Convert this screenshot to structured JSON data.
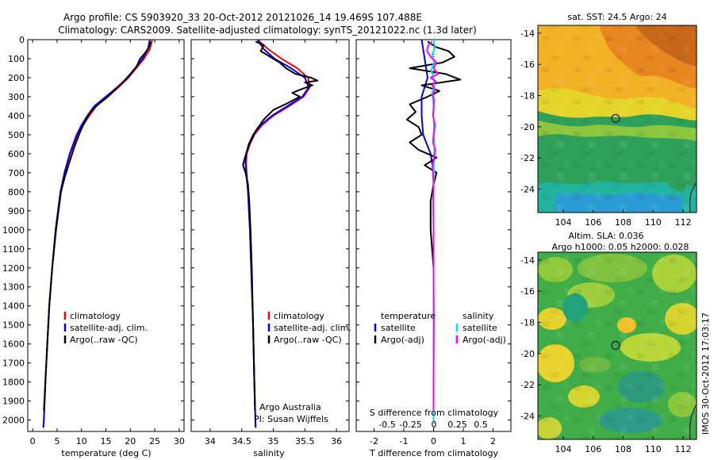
{
  "header": {
    "line1": "Argo profile: CS 5903920_33 20-Oct-2012 20121026_14 19.469S 107.488E",
    "line2": "Climatology: CARS2009. Satellite-adjusted climatology: synTS_20121022.nc (1.3d later)"
  },
  "colors": {
    "climatology": "#ff0000",
    "satellite": "#0000ff",
    "argo": "#000000",
    "sal_satellite": "#00e5e5",
    "sal_argo": "#ff00ff"
  },
  "chart_data": [
    {
      "type": "line",
      "id": "temperature",
      "xlabel": "temperature (deg C)",
      "xlim": [
        -1,
        31
      ],
      "ylim": [
        0,
        2060
      ],
      "x_ticks": [
        0,
        5,
        10,
        15,
        20,
        25,
        30
      ],
      "y_ticks": [
        0,
        100,
        200,
        300,
        400,
        500,
        600,
        700,
        800,
        900,
        1000,
        1100,
        1200,
        1300,
        1400,
        1500,
        1600,
        1700,
        1800,
        1900,
        2000
      ],
      "legend": [
        "climatology",
        "satellite-adj. clim.",
        "Argo(..raw -QC)"
      ],
      "series": [
        {
          "name": "climatology",
          "color": "#ff0000",
          "depth": [
            0,
            50,
            100,
            150,
            200,
            250,
            300,
            350,
            400,
            450,
            500,
            600,
            700,
            800,
            1000,
            1200,
            1400,
            1600,
            1800,
            2000,
            2040
          ],
          "values": [
            24.5,
            24.0,
            22.8,
            21.2,
            19.6,
            17.6,
            15.4,
            13.0,
            11.6,
            10.3,
            9.2,
            7.7,
            6.6,
            5.7,
            4.7,
            4.0,
            3.4,
            3.0,
            2.6,
            2.3,
            2.2
          ]
        },
        {
          "name": "satellite-adj. clim.",
          "color": "#0000ff",
          "depth": [
            0,
            50,
            100,
            150,
            200,
            250,
            300,
            350,
            400,
            450,
            500,
            600,
            700,
            800,
            1000,
            1200,
            1400,
            1600,
            1800,
            2000,
            2040
          ],
          "values": [
            24.0,
            23.6,
            22.5,
            21.0,
            19.5,
            17.3,
            15.0,
            12.6,
            11.2,
            10.0,
            9.0,
            7.6,
            6.5,
            5.7,
            4.7,
            4.0,
            3.4,
            3.0,
            2.6,
            2.3,
            2.2
          ]
        },
        {
          "name": "Argo(..raw -QC)",
          "color": "#000000",
          "depth": [
            10,
            40,
            70,
            100,
            140,
            180,
            220,
            260,
            300,
            340,
            380,
            420,
            480,
            560,
            640,
            720,
            800,
            1000,
            1200,
            1400,
            1600,
            1800,
            1950
          ],
          "values": [
            24.2,
            23.8,
            23.0,
            22.0,
            21.3,
            20.0,
            18.6,
            17.0,
            15.4,
            13.4,
            11.9,
            10.9,
            9.8,
            8.6,
            7.6,
            6.6,
            5.8,
            4.8,
            4.0,
            3.4,
            3.0,
            2.6,
            2.3
          ]
        }
      ]
    },
    {
      "type": "line",
      "id": "salinity",
      "xlabel": "salinity",
      "xlim": [
        33.7,
        36.2
      ],
      "ylim": [
        0,
        2060
      ],
      "x_ticks": [
        34,
        34.5,
        35,
        35.5,
        36
      ],
      "legend": [
        "climatology",
        "satellite-adj. clim.",
        "Argo(..raw -QC)"
      ],
      "annotation": [
        "Argo Australia",
        "PI: Susan Wijffels"
      ],
      "series": [
        {
          "name": "climatology",
          "color": "#ff0000",
          "depth": [
            0,
            50,
            100,
            150,
            200,
            250,
            300,
            350,
            400,
            450,
            500,
            550,
            600,
            650,
            700,
            800,
            1000,
            1200,
            1500,
            1800,
            2040
          ],
          "values": [
            34.75,
            34.92,
            35.13,
            35.38,
            35.55,
            35.58,
            35.48,
            35.25,
            35.0,
            34.82,
            34.7,
            34.63,
            34.58,
            34.57,
            34.58,
            34.6,
            34.63,
            34.65,
            34.68,
            34.7,
            34.72
          ]
        },
        {
          "name": "satellite-adj. clim.",
          "color": "#0000ff",
          "depth": [
            0,
            50,
            100,
            150,
            200,
            250,
            300,
            350,
            400,
            450,
            500,
            550,
            600,
            650,
            700,
            800,
            1000,
            1200,
            1500,
            1800,
            2040
          ],
          "values": [
            34.75,
            34.85,
            35.02,
            35.28,
            35.5,
            35.56,
            35.46,
            35.22,
            34.98,
            34.8,
            34.68,
            34.61,
            34.57,
            34.56,
            34.57,
            34.6,
            34.63,
            34.65,
            34.68,
            34.7,
            34.72
          ]
        },
        {
          "name": "Argo(..raw -QC)",
          "color": "#000000",
          "depth": [
            10,
            30,
            60,
            90,
            120,
            150,
            180,
            200,
            215,
            225,
            240,
            260,
            280,
            300,
            330,
            370,
            420,
            480,
            550,
            620,
            660,
            700,
            760,
            850,
            1000,
            1200,
            1500,
            1800,
            1950
          ],
          "values": [
            34.72,
            34.85,
            34.8,
            34.95,
            35.1,
            35.2,
            35.35,
            35.6,
            35.7,
            35.5,
            35.62,
            35.45,
            35.3,
            35.42,
            35.25,
            35.0,
            34.85,
            34.72,
            34.62,
            34.55,
            34.52,
            34.56,
            34.6,
            34.62,
            34.64,
            34.66,
            34.68,
            34.7,
            34.71
          ]
        }
      ]
    },
    {
      "type": "line",
      "id": "difference",
      "xlabel": "T difference from climatology",
      "x2label": "S difference from climatology",
      "xlim": [
        -2.6,
        2.6
      ],
      "x_ticks": [
        -2,
        -1,
        0,
        1,
        2
      ],
      "x2_ticks": [
        -0.5,
        -0.25,
        0,
        0.25,
        0.5
      ],
      "x2_tick_labels": [
        "-0.5",
        "-0.25",
        "0",
        "0.25",
        "0.5"
      ],
      "legend_temperature": {
        "title": "temperature",
        "entries": [
          "satellite",
          "Argo(-adj)"
        ]
      },
      "legend_salinity": {
        "title": "salinity",
        "entries": [
          "satellite",
          "Argo(-adj)"
        ]
      },
      "series": [
        {
          "name": "temperature satellite",
          "color": "#0000ff",
          "depth": [
            0,
            100,
            200,
            300,
            400,
            500,
            600,
            700,
            800,
            1000,
            1500,
            2000
          ],
          "values": [
            -0.4,
            -0.3,
            -0.2,
            -0.4,
            -0.4,
            -0.35,
            -0.1,
            0.0,
            0.0,
            0.0,
            0.0,
            0.0
          ]
        },
        {
          "name": "temperature Argo(-adj)",
          "color": "#000000",
          "depth": [
            10,
            40,
            60,
            90,
            120,
            150,
            180,
            210,
            240,
            270,
            300,
            340,
            380,
            420,
            460,
            500,
            540,
            580,
            620,
            660,
            700,
            760,
            850,
            1000,
            1200,
            1500,
            1800,
            1950
          ],
          "values": [
            -0.2,
            0.1,
            0.5,
            0.7,
            0.3,
            -0.8,
            0.4,
            0.9,
            -0.4,
            0.2,
            -0.2,
            -0.8,
            -0.6,
            -0.9,
            -0.5,
            -0.4,
            -0.8,
            -0.5,
            0.1,
            -0.3,
            0.1,
            0.0,
            -0.1,
            -0.1,
            0.0,
            0.0,
            0.0,
            0.0
          ]
        },
        {
          "name": "salinity satellite",
          "color": "#00e5e5",
          "depth": [
            0,
            40,
            80,
            120,
            160,
            200,
            240,
            280,
            320,
            360,
            400,
            450,
            500,
            550,
            600,
            700,
            800,
            1000,
            1500,
            2000
          ],
          "values": [
            0.0,
            0.05,
            -0.05,
            0.02,
            -0.08,
            0.0,
            0.04,
            -0.05,
            -0.02,
            0.01,
            0.0,
            0.01,
            0.02,
            0.03,
            0.02,
            0.01,
            0.0,
            0.0,
            0.0,
            0.0
          ]
        },
        {
          "name": "salinity Argo(-adj)",
          "color": "#ff00ff",
          "depth": [
            10,
            30,
            60,
            90,
            120,
            150,
            180,
            200,
            220,
            240,
            260,
            290,
            320,
            360,
            400,
            450,
            500,
            540,
            580,
            620,
            660,
            700,
            760,
            850,
            1000,
            1200,
            1500,
            1800,
            1950
          ],
          "values": [
            -0.05,
            -0.18,
            -0.22,
            -0.1,
            0.1,
            0.0,
            0.15,
            -0.1,
            0.08,
            -0.05,
            0.05,
            -0.03,
            0.02,
            0.0,
            -0.02,
            0.05,
            0.0,
            -0.02,
            0.06,
            0.02,
            -0.04,
            -0.02,
            0.0,
            -0.01,
            0.0,
            0.0,
            0.01,
            0.0,
            0.0
          ]
        }
      ]
    },
    {
      "type": "heatmap",
      "id": "sst-map",
      "title": "sat. SST: 24.5 Argo: 24",
      "x_ticks": [
        104,
        106,
        108,
        110,
        112
      ],
      "y_ticks": [
        -14,
        -16,
        -18,
        -20,
        -22,
        -24
      ],
      "xlim": [
        102.3,
        112.9
      ],
      "ylim": [
        -25.5,
        -13.5
      ],
      "marker": {
        "lon": 107.488,
        "lat": -19.469
      }
    },
    {
      "type": "heatmap",
      "id": "sla-map",
      "title": [
        "Altim. SLA: 0.036",
        "Argo h1000: 0.05 h2000: 0.028"
      ],
      "x_ticks": [
        104,
        106,
        108,
        110,
        112
      ],
      "y_ticks": [
        -14,
        -16,
        -18,
        -20,
        -22,
        -24
      ],
      "xlim": [
        102.3,
        112.9
      ],
      "ylim": [
        -25.5,
        -13.5
      ],
      "marker": {
        "lon": 107.488,
        "lat": -19.469
      }
    }
  ],
  "watermark": "IMOS 30-Oct-2012 17:03:17"
}
